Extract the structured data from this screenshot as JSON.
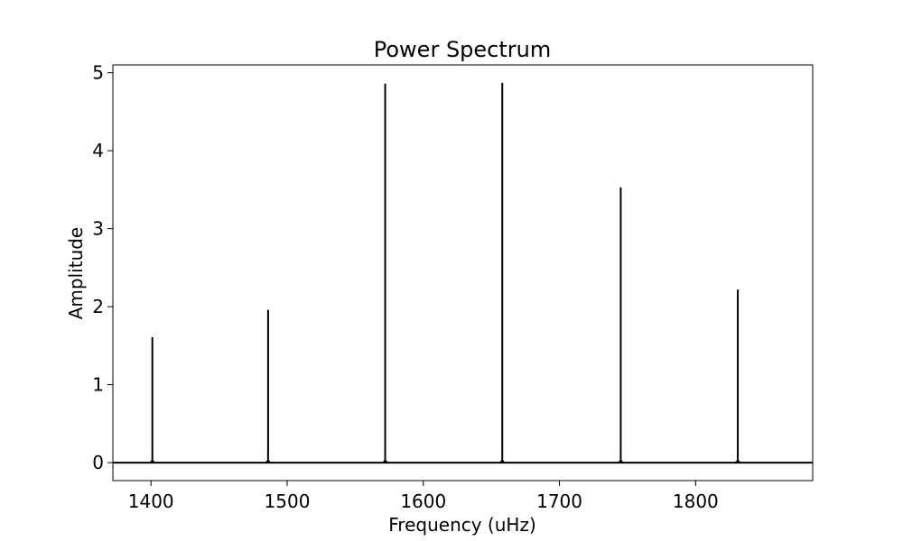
{
  "chart_data": {
    "type": "line",
    "title": "Power Spectrum",
    "xlabel": "Frequency (uHz)",
    "ylabel": "Amplitude",
    "xlim": [
      1372,
      1886
    ],
    "ylim": [
      -0.23,
      5.1
    ],
    "xticks": [
      1400,
      1500,
      1600,
      1700,
      1800
    ],
    "xtick_labels": [
      "1400",
      "1500",
      "1600",
      "1700",
      "1800"
    ],
    "yticks": [
      0,
      1,
      2,
      3,
      4,
      5
    ],
    "ytick_labels": [
      "0",
      "1",
      "2",
      "3",
      "4",
      "5"
    ],
    "grid": false,
    "line_color": "#000000",
    "baseline": 0,
    "series": [
      {
        "peaks": [
          {
            "x": 1401,
            "y": 1.61
          },
          {
            "x": 1486,
            "y": 1.96
          },
          {
            "x": 1572,
            "y": 4.86
          },
          {
            "x": 1658,
            "y": 4.87
          },
          {
            "x": 1745,
            "y": 3.53
          },
          {
            "x": 1831,
            "y": 2.22
          }
        ]
      }
    ]
  }
}
